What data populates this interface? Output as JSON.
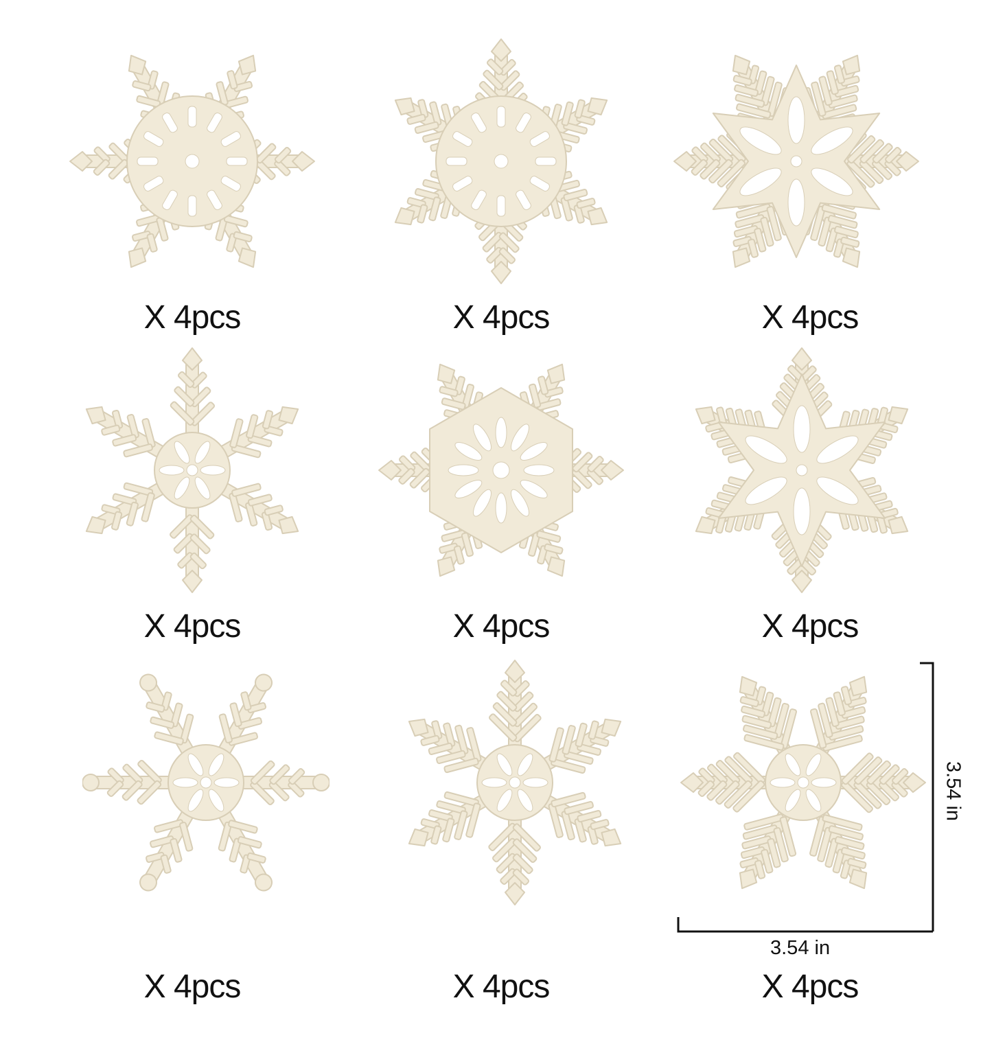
{
  "items": [
    {
      "quantity": "X 4pcs",
      "variant": "spoked-ring-flake"
    },
    {
      "quantity": "X 4pcs",
      "variant": "lace-medallion-flake"
    },
    {
      "quantity": "X 4pcs",
      "variant": "diamond-star-flake"
    },
    {
      "quantity": "X 4pcs",
      "variant": "fleur-flake"
    },
    {
      "quantity": "X 4pcs",
      "variant": "scroll-hexagon-flake"
    },
    {
      "quantity": "X 4pcs",
      "variant": "petal-star-flake"
    },
    {
      "quantity": "X 4pcs",
      "variant": "dotted-star-flake"
    },
    {
      "quantity": "X 4pcs",
      "variant": "fern-flake"
    },
    {
      "quantity": "X 4pcs",
      "variant": "clover-flake"
    }
  ],
  "dimensions": {
    "width": "3.54 in",
    "height": "3.54 in"
  },
  "colors": {
    "wood": "#f1ead8",
    "wood_edge": "#d8ceb6",
    "text": "#111111",
    "background": "#ffffff"
  }
}
